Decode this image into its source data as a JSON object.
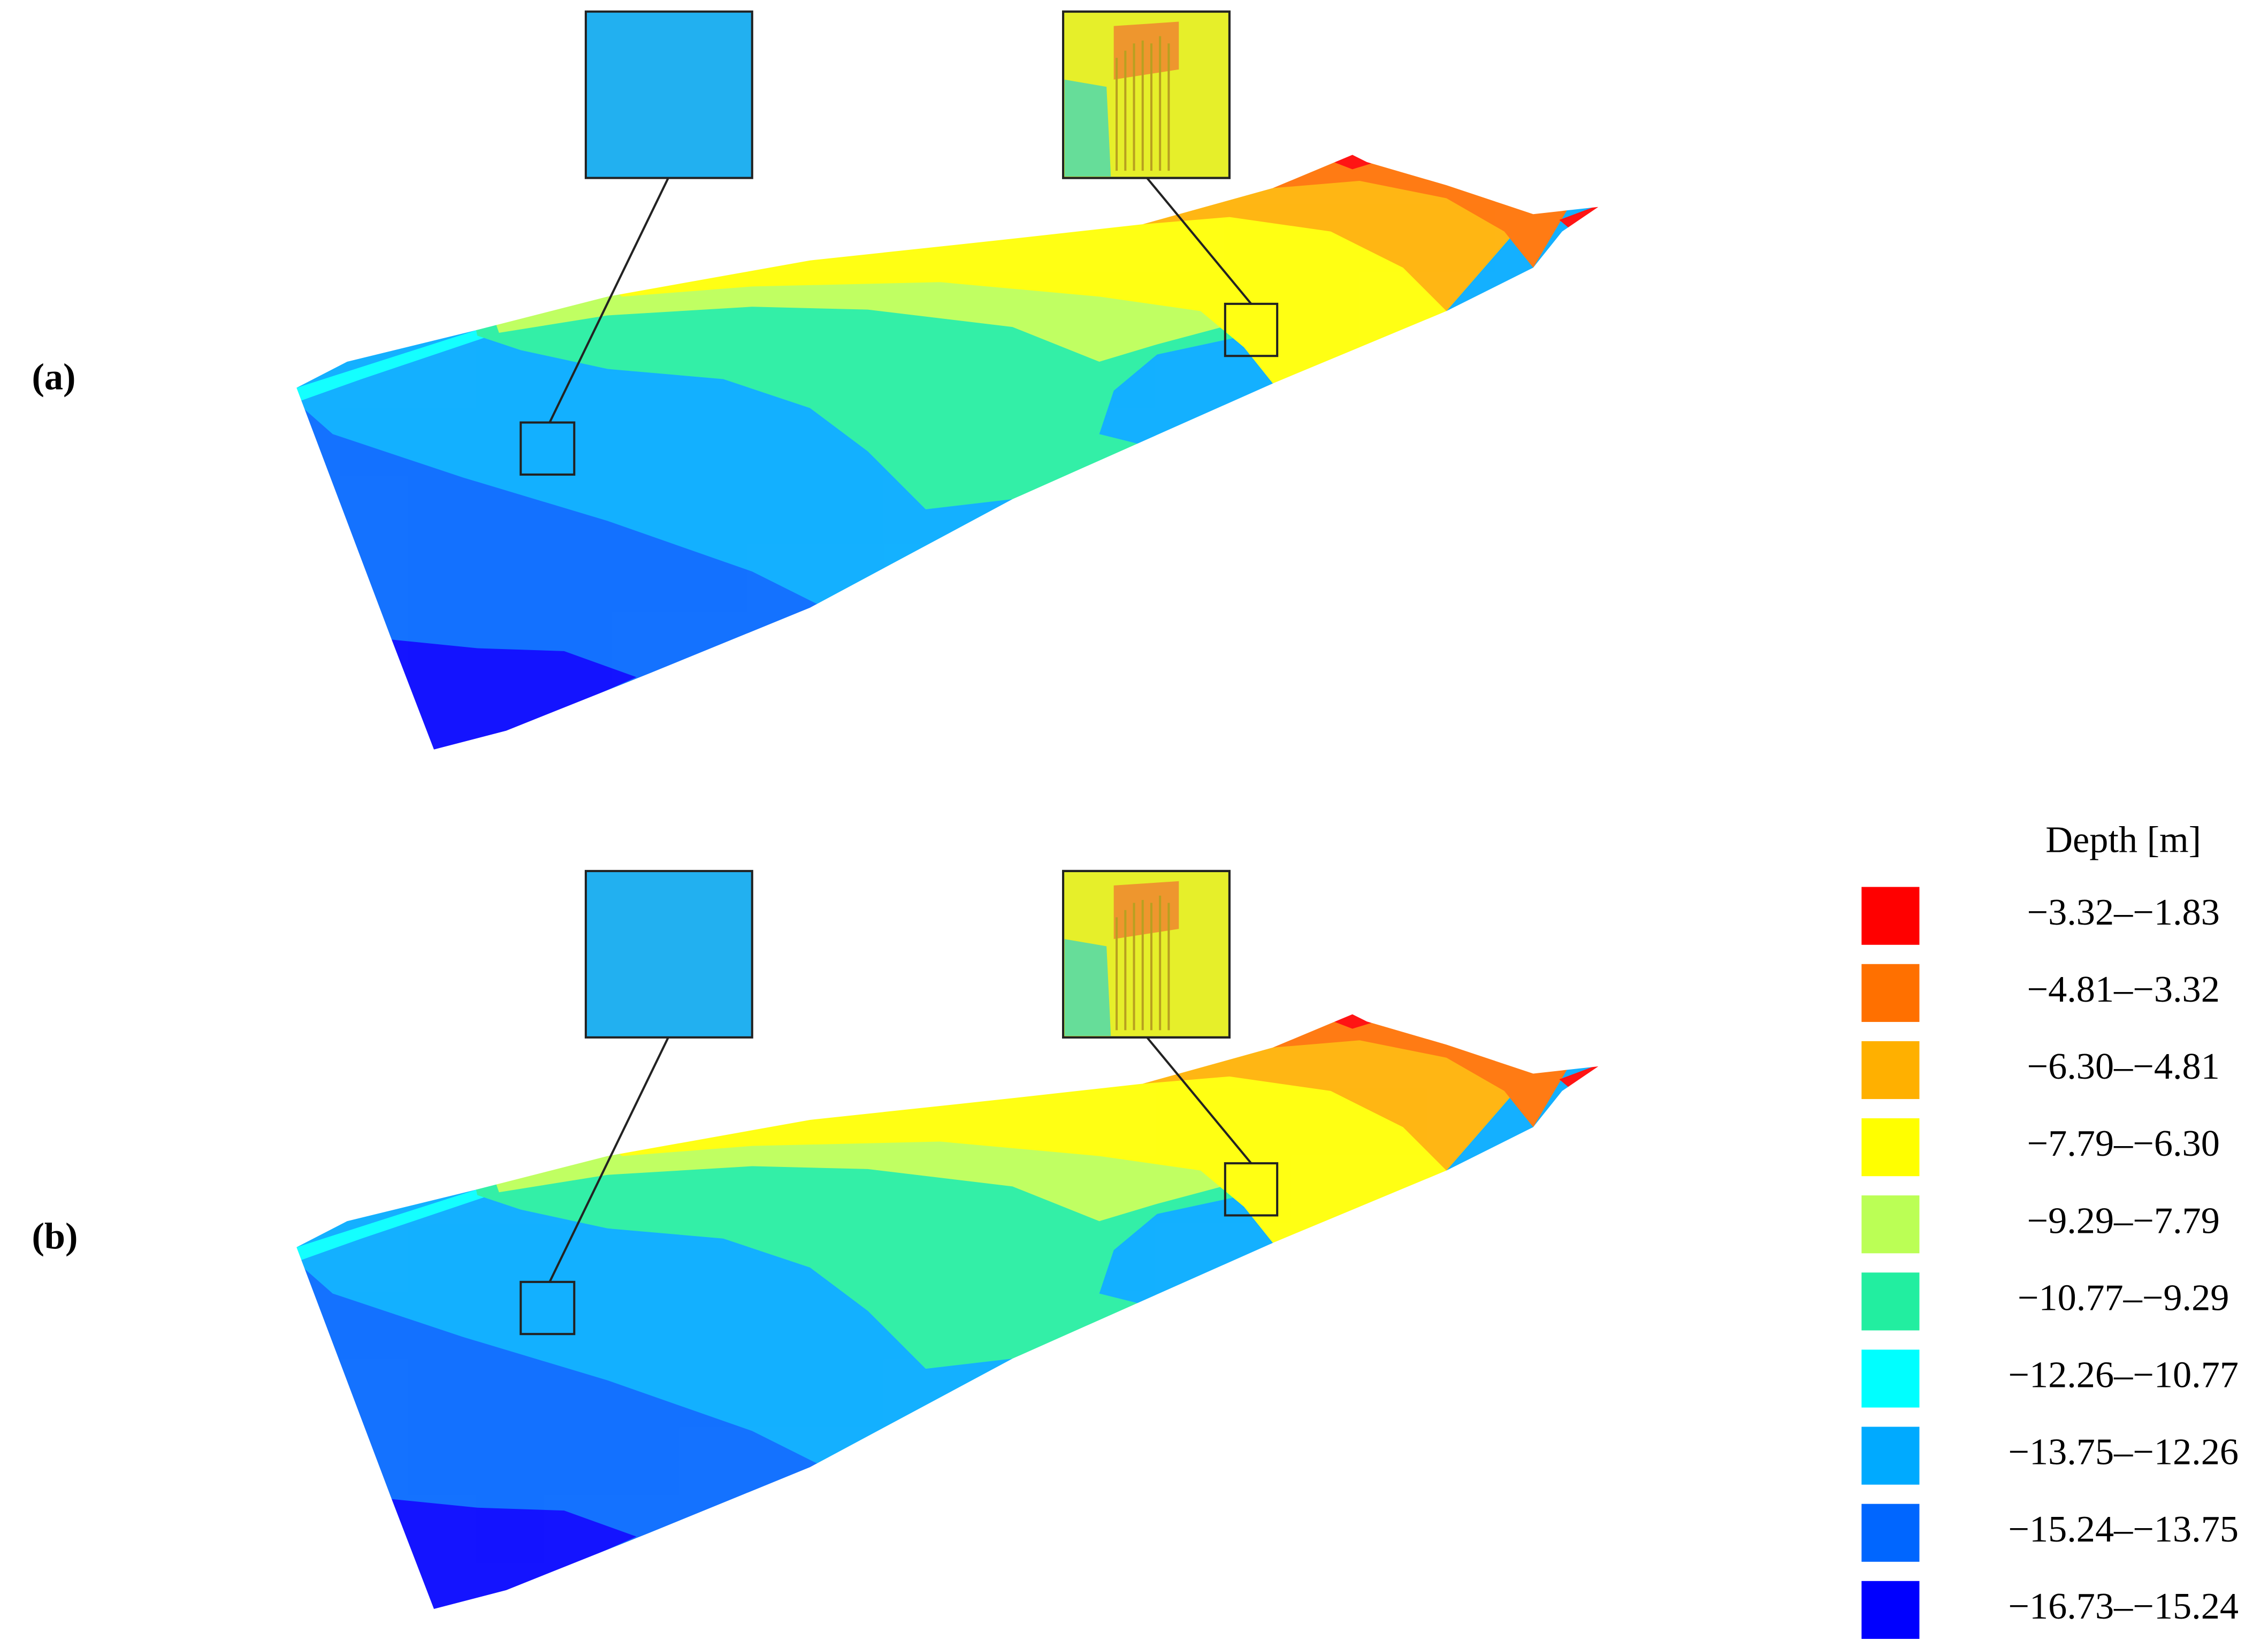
{
  "panels": [
    {
      "label": "(a)"
    },
    {
      "label": "(b)"
    }
  ],
  "legend": {
    "title": "Depth [m]",
    "items": [
      {
        "label": "−3.32–−1.83",
        "color": "#ff0000"
      },
      {
        "label": "−4.81–−3.32",
        "color": "#ff7000"
      },
      {
        "label": "−6.30–−4.81",
        "color": "#ffb000"
      },
      {
        "label": "−7.79–−6.30",
        "color": "#ffff00"
      },
      {
        "label": "−9.29–−7.79",
        "color": "#bbff55"
      },
      {
        "label": "−10.77–−9.29",
        "color": "#22eea0"
      },
      {
        "label": "−12.26–−10.77",
        "color": "#00ffff"
      },
      {
        "label": "−13.75–−12.26",
        "color": "#00aaff"
      },
      {
        "label": "−15.24–−13.75",
        "color": "#0066ff"
      },
      {
        "label": "−16.73–−15.24",
        "color": "#0000ff"
      }
    ]
  }
}
